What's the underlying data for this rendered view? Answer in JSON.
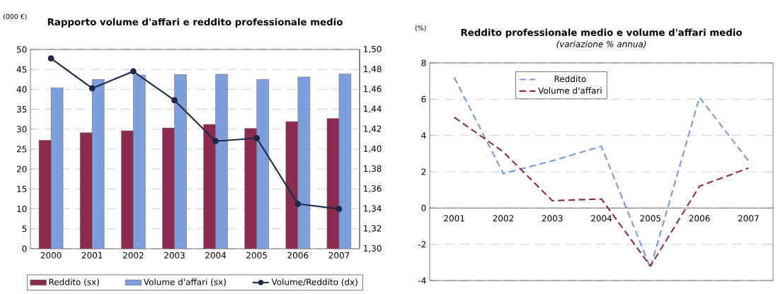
{
  "chart_data": [
    {
      "type": "bar",
      "title": "Rapporto volume d'affari e reddito professionale medio",
      "ylabel": "(000 €)",
      "categories": [
        "2000",
        "2001",
        "2002",
        "2003",
        "2004",
        "2005",
        "2006",
        "2007"
      ],
      "series": [
        {
          "name": "Reddito (sx)",
          "color": "#8b2b50",
          "values": [
            27.2,
            29.1,
            29.6,
            30.3,
            31.2,
            30.2,
            31.9,
            32.7
          ]
        },
        {
          "name": "Volume d'affari (sx)",
          "color": "#7f9fdc",
          "values": [
            40.4,
            42.5,
            43.6,
            43.7,
            43.8,
            42.5,
            43.1,
            43.9
          ]
        },
        {
          "name": "Volume/Reddito (dx)",
          "type": "line",
          "axis": "y2",
          "marker": "circle",
          "color": "#1f2a4a",
          "values": [
            1.491,
            1.461,
            1.478,
            1.449,
            1.408,
            1.411,
            1.345,
            1.34
          ]
        }
      ],
      "ylim": [
        0,
        50
      ],
      "yticks": [
        0,
        5,
        10,
        15,
        20,
        25,
        30,
        35,
        40,
        45,
        50
      ],
      "y2lim": [
        1.3,
        1.5
      ],
      "y2ticks": [
        {
          "value": 1.3,
          "label": "1,30"
        },
        {
          "value": 1.32,
          "label": "1,32"
        },
        {
          "value": 1.34,
          "label": "1,34"
        },
        {
          "value": 1.36,
          "label": "1,36"
        },
        {
          "value": 1.38,
          "label": "1,38"
        },
        {
          "value": 1.4,
          "label": "1,40"
        },
        {
          "value": 1.42,
          "label": "1,42"
        },
        {
          "value": 1.44,
          "label": "1,44"
        },
        {
          "value": 1.46,
          "label": "1,46"
        },
        {
          "value": 1.48,
          "label": "1,48"
        },
        {
          "value": 1.5,
          "label": "1,50"
        }
      ],
      "grid": "y",
      "legend": "bottom"
    },
    {
      "type": "line",
      "title": "Reddito professionale medio e volume d'affari medio",
      "subtitle": "(variazione % annua)",
      "ylabel": "(%)",
      "categories": [
        "2001",
        "2002",
        "2003",
        "2004",
        "2005",
        "2006",
        "2007"
      ],
      "series": [
        {
          "name": "Reddito",
          "color": "#7a9ad8",
          "values": [
            7.2,
            1.9,
            2.6,
            3.4,
            -3.3,
            6.1,
            2.6
          ]
        },
        {
          "name": "Volume d'affari",
          "color": "#8b2b50",
          "values": [
            5.0,
            3.1,
            0.4,
            0.5,
            -3.2,
            1.2,
            2.2
          ]
        }
      ],
      "ylim": [
        -4,
        8
      ],
      "yticks": [
        -4,
        -2,
        0,
        2,
        4,
        6,
        8
      ],
      "grid": "y",
      "legend": "top",
      "line_style": "dashed"
    }
  ]
}
